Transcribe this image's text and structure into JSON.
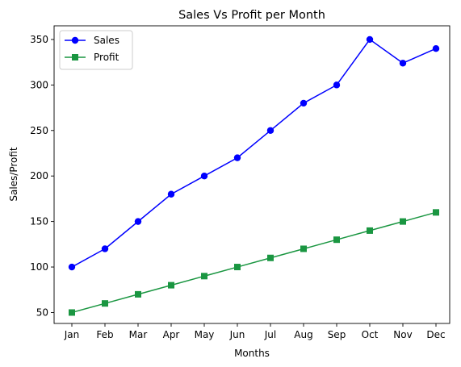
{
  "chart_data": {
    "type": "line",
    "title": "Sales Vs Profit per Month",
    "xlabel": "Months",
    "ylabel": "Sales/Profit",
    "categories": [
      "Jan",
      "Feb",
      "Mar",
      "Apr",
      "May",
      "Jun",
      "Jul",
      "Aug",
      "Sep",
      "Oct",
      "Nov",
      "Dec"
    ],
    "series": [
      {
        "name": "Sales",
        "values": [
          100,
          120,
          150,
          180,
          200,
          220,
          250,
          280,
          300,
          350,
          324,
          340
        ],
        "color": "#0000ff",
        "marker": "circle"
      },
      {
        "name": "Profit",
        "values": [
          50,
          60,
          70,
          80,
          90,
          100,
          110,
          120,
          130,
          140,
          150,
          160
        ],
        "color": "#1a9641",
        "marker": "square"
      }
    ],
    "ylim": [
      38,
      365
    ],
    "yticks": [
      50,
      100,
      150,
      200,
      250,
      300,
      350
    ],
    "grid": false,
    "legend": "top-left"
  }
}
